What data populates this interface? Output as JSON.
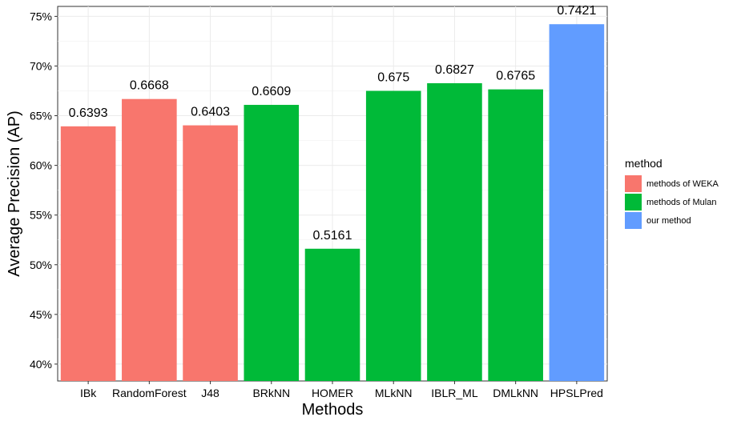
{
  "chart_data": {
    "type": "bar",
    "xlabel": "Methods",
    "ylabel": "Average Precision (AP)",
    "ylim": [
      0.383,
      0.76
    ],
    "yticks": [
      0.4,
      0.45,
      0.5,
      0.55,
      0.6,
      0.65,
      0.7,
      0.75
    ],
    "ytick_labels": [
      "40%",
      "45%",
      "50%",
      "55%",
      "60%",
      "65%",
      "70%",
      "75%"
    ],
    "grid": true,
    "legend_position": "right",
    "legend_title": "method",
    "categories": [
      "IBk",
      "RandomForest",
      "J48",
      "BRkNN",
      "HOMER",
      "MLkNN",
      "IBLR_ML",
      "DMLkNN",
      "HPSLPred"
    ],
    "values": [
      0.6393,
      0.6668,
      0.6403,
      0.6609,
      0.5161,
      0.675,
      0.6827,
      0.6765,
      0.7421
    ],
    "value_labels": [
      "0.6393",
      "0.6668",
      "0.6403",
      "0.6609",
      "0.5161",
      "0.675",
      "0.6827",
      "0.6765",
      "0.7421"
    ],
    "groups": [
      "methods of WEKA",
      "methods of WEKA",
      "methods of WEKA",
      "methods of Mulan",
      "methods of Mulan",
      "methods of Mulan",
      "methods of Mulan",
      "methods of Mulan",
      "our method"
    ],
    "legend": [
      {
        "label": "methods of WEKA",
        "color": "#F8766D"
      },
      {
        "label": "methods of Mulan",
        "color": "#00BA38"
      },
      {
        "label": "our method",
        "color": "#619CFF"
      }
    ]
  }
}
